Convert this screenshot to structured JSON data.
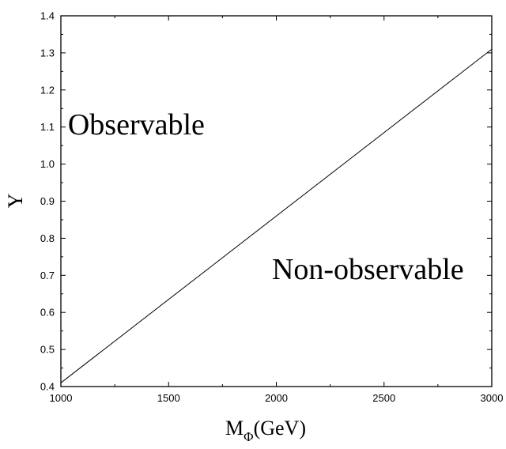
{
  "chart_data": {
    "type": "line",
    "xlabel": {
      "main": "M",
      "sub": "Φ",
      "rest": "(GeV)"
    },
    "ylabel": "Y",
    "xlim": [
      1000,
      3000
    ],
    "ylim": [
      0.4,
      1.4
    ],
    "x_ticks": [
      1000,
      1500,
      2000,
      2500,
      3000
    ],
    "y_ticks": [
      0.4,
      0.5,
      0.6,
      0.7,
      0.8,
      0.9,
      1.0,
      1.1,
      1.2,
      1.3,
      1.4
    ],
    "grid": false,
    "series": [
      {
        "x": [
          1000,
          3000
        ],
        "y": [
          0.41,
          1.31
        ]
      }
    ],
    "annotations": [
      {
        "text": "Observable",
        "x": 1350,
        "y": 1.08
      },
      {
        "text": "Non-observable",
        "x": 2425,
        "y": 0.69
      }
    ]
  }
}
